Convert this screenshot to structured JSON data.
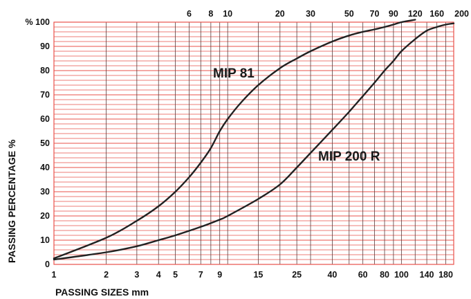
{
  "chart_data": {
    "type": "line",
    "xscale": "log",
    "xlabel": "PASSING SIZES mm",
    "ylabel": "PASSING PERCENTAGE %",
    "xlim": [
      1,
      200
    ],
    "ylim": [
      0,
      100
    ],
    "grid": true,
    "grid_color": "#e8504a",
    "line_color": "#222222",
    "y_ticks": [
      0,
      10,
      20,
      30,
      40,
      50,
      60,
      70,
      80,
      90,
      100
    ],
    "y_tick_labels": [
      "0",
      "10",
      "20",
      "30",
      "40",
      "50",
      "60",
      "70",
      "80",
      "90",
      "% 100"
    ],
    "x_ticks_bottom": [
      1,
      2,
      3,
      4,
      5,
      7,
      9,
      15,
      25,
      40,
      60,
      80,
      100,
      140,
      180
    ],
    "x_ticks_top": [
      6,
      8,
      10,
      20,
      30,
      50,
      70,
      90,
      120,
      160,
      200
    ],
    "series": [
      {
        "name": "MIP 81",
        "x": [
          1,
          2,
          3,
          4,
          5,
          6,
          7,
          8,
          9,
          10,
          12,
          15,
          20,
          25,
          30,
          40,
          50,
          60,
          70,
          80,
          90,
          100,
          120
        ],
        "y": [
          2.5,
          11,
          18,
          24,
          30,
          36,
          42,
          48,
          55,
          60,
          67,
          74,
          81,
          85,
          88,
          92,
          94.5,
          96,
          97,
          98,
          99,
          100,
          101
        ]
      },
      {
        "name": "MIP 200 R",
        "x": [
          1,
          2,
          3,
          4,
          5,
          7,
          9,
          10,
          15,
          20,
          25,
          30,
          40,
          50,
          60,
          70,
          80,
          90,
          100,
          120,
          140,
          160,
          180,
          200
        ],
        "y": [
          2,
          5,
          7.5,
          10,
          12,
          15.5,
          18.5,
          20,
          27,
          33,
          40,
          46,
          55.5,
          63,
          69.5,
          75,
          80,
          84,
          88,
          93,
          96.5,
          98,
          99,
          99.5
        ]
      }
    ]
  }
}
